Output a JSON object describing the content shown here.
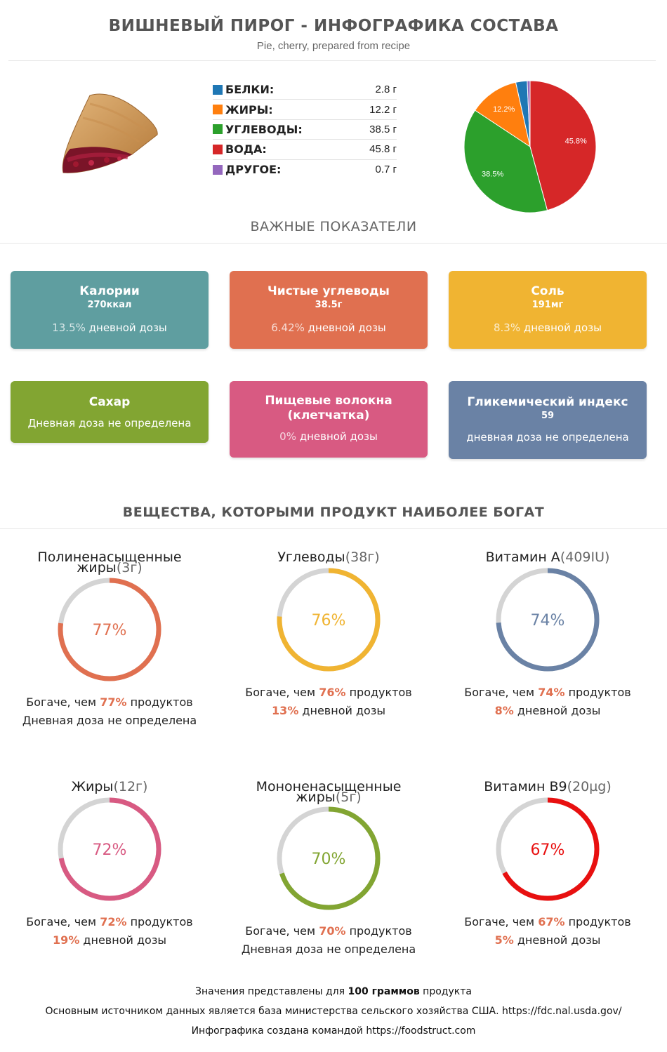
{
  "header": {
    "title": "ВИШНЕВЫЙ ПИРОГ - ИНФОГРАФИКА СОСТАВА",
    "subtitle": "Pie, cherry, prepared from recipe"
  },
  "macros": [
    {
      "label": "БЕЛКИ:",
      "value": "2.8 г",
      "color": "#1f77b4"
    },
    {
      "label": "ЖИРЫ:",
      "value": "12.2 г",
      "color": "#ff7f0e"
    },
    {
      "label": "УГЛЕВОДЫ:",
      "value": "38.5 г",
      "color": "#2ca02c"
    },
    {
      "label": "ВОДА:",
      "value": "45.8 г",
      "color": "#d62728"
    },
    {
      "label": "ДРУГОЕ:",
      "value": "0.7 г",
      "color": "#9467bd"
    }
  ],
  "chart_data": {
    "type": "pie",
    "slices": [
      {
        "value": 45.8,
        "label": "45.8%",
        "color": "#d62728"
      },
      {
        "value": 38.5,
        "label": "38.5%",
        "color": "#2ca02c"
      },
      {
        "value": 12.2,
        "label": "12.2%",
        "color": "#ff7f0e"
      },
      {
        "value": 2.8,
        "label": "",
        "color": "#1f77b4"
      },
      {
        "value": 0.7,
        "label": "",
        "color": "#9467bd"
      }
    ]
  },
  "key_section": {
    "title": "ВАЖНЫЕ ПОКАЗАТЕЛИ",
    "cards": [
      {
        "title": "Калории",
        "value": "270ккал",
        "pct": "13.5%",
        "dose": " дневной дозы",
        "color": "#5f9ea0"
      },
      {
        "title": "Чистые углеводы",
        "value": "38.5г",
        "pct": "6.42%",
        "dose": " дневной дозы",
        "color": "#e07050"
      },
      {
        "title": "Соль",
        "value": "191мг",
        "pct": "8.3%",
        "dose": " дневной дозы",
        "color": "#f0b432"
      },
      {
        "title": "Сахар",
        "value": "",
        "pct": "",
        "dose": "Дневная доза не определена",
        "color": "#82a532"
      },
      {
        "title": "Пищевые волокна (клетчатка)",
        "value": "",
        "pct": "0%",
        "dose": " дневной дозы",
        "color": "#d85a82"
      },
      {
        "title": "Гликемический индекс",
        "value": "59",
        "pct": "",
        "dose": "дневная доза не определена",
        "color": "#6a82a5"
      }
    ]
  },
  "rich_section": {
    "title": "ВЕЩЕСТВА, КОТОРЫМИ ПРОДУКТ НАИБОЛЕЕ БОГАТ",
    "richer_prefix": "Богаче, чем ",
    "richer_suffix": " продуктов",
    "items": [
      {
        "name": "Полиненасыщенные жиры",
        "amount": "(3г)",
        "percent": 77,
        "percent_text": "77%",
        "dose_pct": "",
        "dose_text": "Дневная доза не определена",
        "color": "#e07050"
      },
      {
        "name": "Углеводы",
        "amount": "(38г)",
        "percent": 76,
        "percent_text": "76%",
        "dose_pct": "13%",
        "dose_text": " дневной дозы",
        "color": "#f0b432"
      },
      {
        "name": "Витамин A",
        "amount": "(409IU)",
        "percent": 74,
        "percent_text": "74%",
        "dose_pct": "8%",
        "dose_text": " дневной дозы",
        "color": "#6a82a5"
      },
      {
        "name": "Жиры",
        "amount": "(12г)",
        "percent": 72,
        "percent_text": "72%",
        "dose_pct": "19%",
        "dose_text": " дневной дозы",
        "color": "#d85a82"
      },
      {
        "name": "Мононенасыщенные жиры",
        "amount": "(5г)",
        "percent": 70,
        "percent_text": "70%",
        "dose_pct": "",
        "dose_text": "Дневная доза не определена",
        "color": "#82a532"
      },
      {
        "name": "Витамин B9",
        "amount": "(20µg)",
        "percent": 67,
        "percent_text": "67%",
        "dose_pct": "5%",
        "dose_text": " дневной дозы",
        "color": "#e81010"
      }
    ]
  },
  "footer": {
    "line1_pre": "Значения представлены для ",
    "line1_bold": "100 граммов",
    "line1_post": " продукта",
    "line2": "Основным источником данных является база министерства сельского хозяйства США. https://fdc.nal.usda.gov/",
    "line3": "Инфографика создана командой https://foodstruct.com"
  }
}
